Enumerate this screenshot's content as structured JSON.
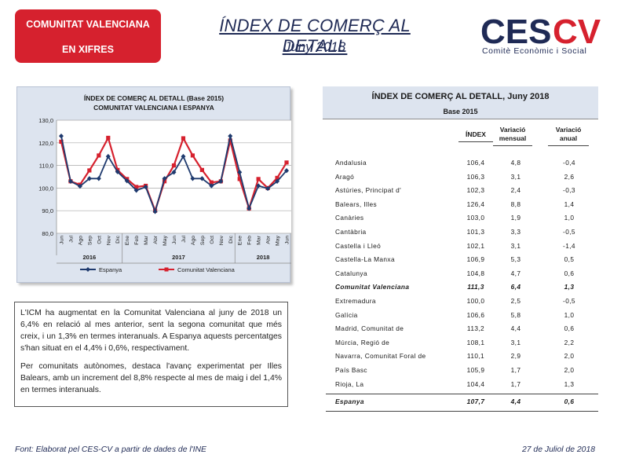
{
  "header": {
    "badge_line1": "COMUNITAT VALENCIANA",
    "badge_line2": "EN XIFRES",
    "title": "ÍNDEX DE COMERÇ AL DETALL",
    "subtitle": "Juny 2018",
    "logo_text": "CESCV",
    "logo_subtitle": "Comitè Econòmic i Social"
  },
  "colors": {
    "brand_red": "#d6212e",
    "brand_navy": "#1f2a55",
    "spain_line": "#1f3a6e",
    "cv_line": "#d6212e",
    "panel_bg": "#dde4ef"
  },
  "chart_data": {
    "type": "line",
    "title": "ÍNDEX DE COMERÇ AL DETALL (Base 2015)",
    "subtitle": "COMUNITAT VALENCIANA I ESPANYA",
    "xlabel": "",
    "ylabel": "",
    "ylim": [
      80,
      130
    ],
    "yticks": [
      "80,0",
      "90,0",
      "100,0",
      "110,0",
      "120,0",
      "130,0"
    ],
    "grid": true,
    "legend_position": "bottom",
    "categories": [
      "Jun",
      "Jul",
      "Ago",
      "Sep",
      "Oct",
      "Nov",
      "Dic",
      "Ene",
      "Feb",
      "Mar",
      "Abr",
      "May",
      "Jun",
      "Jul",
      "Ago",
      "Sep",
      "Oct",
      "Nov",
      "Dic",
      "Ene",
      "Feb",
      "Mar",
      "Abr",
      "May",
      "Jun"
    ],
    "year_labels": [
      {
        "label": "2016",
        "start": 0,
        "end": 6
      },
      {
        "label": "2017",
        "start": 7,
        "end": 18
      },
      {
        "label": "2018",
        "start": 19,
        "end": 24
      }
    ],
    "series": [
      {
        "name": "Espanya",
        "color": "#1f3a6e",
        "marker": "diamond",
        "values": [
          123.0,
          103.0,
          100.8,
          104.2,
          104.2,
          114.0,
          107.2,
          103.2,
          99.0,
          100.5,
          89.6,
          104.2,
          107.0,
          114.0,
          104.2,
          104.2,
          101.0,
          103.0,
          123.0,
          107.0,
          91.0,
          101.0,
          99.8,
          103.0,
          107.7
        ]
      },
      {
        "name": "Comunitat Valenciana",
        "color": "#d6212e",
        "marker": "square",
        "values": [
          120.5,
          103.0,
          101.5,
          107.8,
          114.4,
          122.2,
          108.0,
          104.0,
          100.5,
          101.0,
          90.0,
          103.0,
          110.0,
          122.0,
          114.4,
          108.0,
          102.5,
          103.0,
          121.0,
          104.0,
          91.0,
          104.0,
          100.0,
          104.5,
          111.3
        ]
      }
    ]
  },
  "paragraphs": [
    "L'ICM ha augmentat en la Comunitat Valenciana al juny de 2018 un 6,4% en relació al mes anterior, sent la segona comunitat que més creix, i un 1,3% en termes interanuals. A Espanya aquests percentatges s'han situat en el 4,4% i 0,6%, respectivament.",
    "Per comunitats autònomes, destaca l'avanç experimentat per Illes Balears, amb un increment del 8,8% respecte al mes de maig i del 1,4% en termes interanuals."
  ],
  "table": {
    "title": "ÍNDEX DE COMERÇ AL DETALL, Juny 2018",
    "subtitle": "Base 2015",
    "columns": [
      "ÍNDEX",
      "Variació mensual",
      "Variació anual"
    ],
    "rows": [
      {
        "name": "Andalusia",
        "index": "106,4",
        "monthly": "4,8",
        "annual": "-0,4"
      },
      {
        "name": "Aragó",
        "index": "106,3",
        "monthly": "3,1",
        "annual": "2,6"
      },
      {
        "name": "Astúries, Principat d'",
        "index": "102,3",
        "monthly": "2,4",
        "annual": "-0,3"
      },
      {
        "name": "Balears, Illes",
        "index": "126,4",
        "monthly": "8,8",
        "annual": "1,4"
      },
      {
        "name": "Canàries",
        "index": "103,0",
        "monthly": "1,9",
        "annual": "1,0"
      },
      {
        "name": "Cantàbria",
        "index": "101,3",
        "monthly": "3,3",
        "annual": "-0,5"
      },
      {
        "name": "Castella i Lleó",
        "index": "102,1",
        "monthly": "3,1",
        "annual": "-1,4"
      },
      {
        "name": "Castella-La Manxa",
        "index": "106,9",
        "monthly": "5,3",
        "annual": "0,5"
      },
      {
        "name": "Catalunya",
        "index": "104,8",
        "monthly": "4,7",
        "annual": "0,6"
      },
      {
        "name": "Comunitat Valenciana",
        "index": "111,3",
        "monthly": "6,4",
        "annual": "1,3",
        "highlight": true
      },
      {
        "name": "Extremadura",
        "index": "100,0",
        "monthly": "2,5",
        "annual": "-0,5"
      },
      {
        "name": "Galícia",
        "index": "106,6",
        "monthly": "5,8",
        "annual": "1,0"
      },
      {
        "name": "Madrid, Comunitat de",
        "index": "113,2",
        "monthly": "4,4",
        "annual": "0,6"
      },
      {
        "name": "Múrcia, Regió de",
        "index": "108,1",
        "monthly": "3,1",
        "annual": "2,2"
      },
      {
        "name": "Navarra, Comunitat Foral de",
        "index": "110,1",
        "monthly": "2,9",
        "annual": "2,0"
      },
      {
        "name": "País Basc",
        "index": "105,9",
        "monthly": "1,7",
        "annual": "2,0"
      },
      {
        "name": "Rioja, La",
        "index": "104,4",
        "monthly": "1,7",
        "annual": "1,3"
      }
    ],
    "total": {
      "name": "Espanya",
      "index": "107,7",
      "monthly": "4,4",
      "annual": "0,6"
    }
  },
  "footer": {
    "source": "Font: Elaborat pel CES-CV a partir de dades de l'INE",
    "date": "27 de Juliol de 2018"
  }
}
